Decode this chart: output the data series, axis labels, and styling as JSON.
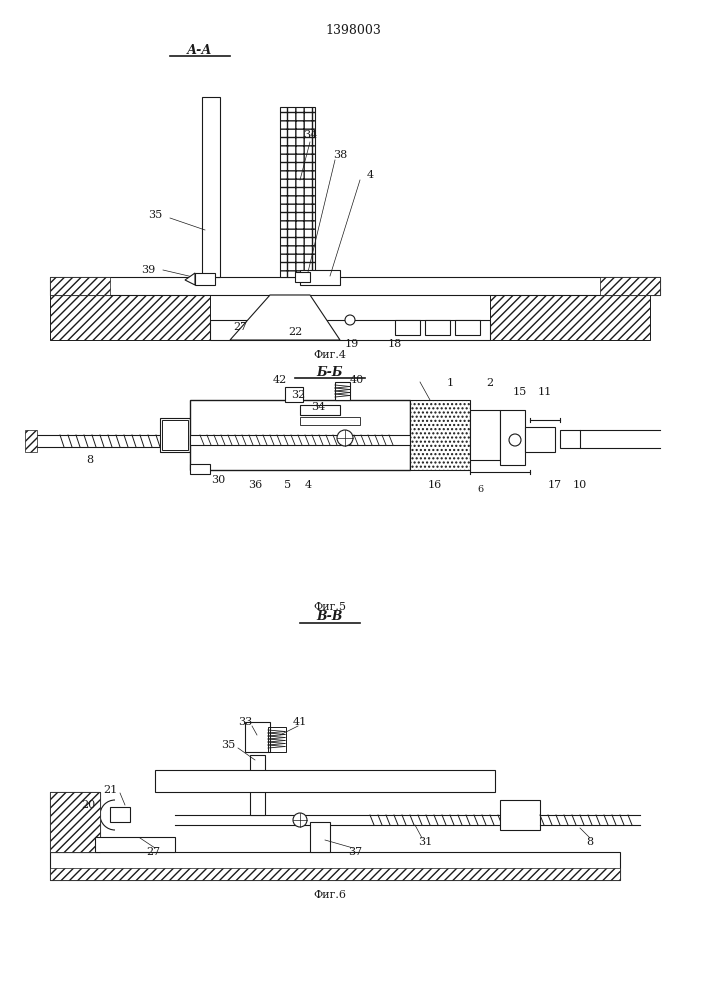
{
  "title": "1398003",
  "fig4_label": "А-А",
  "fig4_caption": "Фиг.4",
  "fig5_label": "Б-Б",
  "fig5_caption": "Фиг.5",
  "fig6_label": "В-В",
  "fig6_caption": "Фиг.6",
  "bg_color": "#ffffff",
  "line_color": "#1a1a1a",
  "hatch_color": "#1a1a1a",
  "label_color": "#1a1a1a"
}
